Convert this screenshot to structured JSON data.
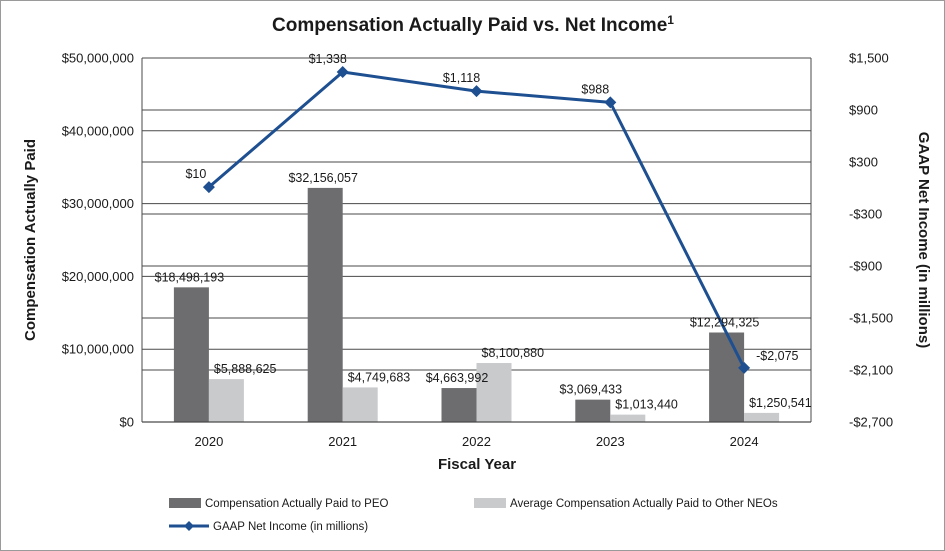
{
  "chart_data": {
    "type": "bar",
    "title": "Compensation Actually Paid vs. Net Income",
    "title_superscript": "1",
    "xlabel": "Fiscal Year",
    "ylabel": "Compensation Actually Paid",
    "y2label": "GAAP Net Income (in millions)",
    "categories": [
      "2020",
      "2021",
      "2022",
      "2023",
      "2024"
    ],
    "ylim": [
      0,
      50000000
    ],
    "yticks": [
      0,
      10000000,
      20000000,
      30000000,
      40000000,
      50000000
    ],
    "ytick_labels": [
      "$0",
      "$10,000,000",
      "$20,000,000",
      "$30,000,000",
      "$40,000,000",
      "$50,000,000"
    ],
    "y2lim": [
      -2700,
      1500
    ],
    "y2ticks": [
      -2700,
      -2100,
      -1500,
      -900,
      -300,
      300,
      900,
      1500
    ],
    "y2tick_labels": [
      "-$2,700",
      "-$2,100",
      "-$1,500",
      "-$900",
      "-$300",
      "$300",
      "$900",
      "$1,500"
    ],
    "grid": "horizontal",
    "legend_position": "bottom",
    "series": [
      {
        "name": "Compensation Actually Paid to PEO",
        "type": "bar",
        "axis": "left",
        "color": "#6d6d6f",
        "values": [
          18498193,
          32156057,
          4663992,
          3069433,
          12294325
        ],
        "labels": [
          "$18,498,193",
          "$32,156,057",
          "$4,663,992",
          "$3,069,433",
          "$12,294,325"
        ]
      },
      {
        "name": "Average Compensation Actually Paid to Other NEOs",
        "type": "bar",
        "axis": "left",
        "color": "#c9cacc",
        "values": [
          5888625,
          4749683,
          8100880,
          1013440,
          1250541
        ],
        "labels": [
          "$5,888,625",
          "$4,749,683",
          "$8,100,880",
          "$1,013,440",
          "$1,250,541"
        ]
      },
      {
        "name": "GAAP Net Income (in millions)",
        "type": "line",
        "axis": "right",
        "color": "#1d4f91",
        "values": [
          10,
          1338,
          1118,
          988,
          -2075
        ],
        "labels": [
          "$10",
          "$1,338",
          "$1,118",
          "$988",
          "-$2,075"
        ]
      }
    ]
  }
}
